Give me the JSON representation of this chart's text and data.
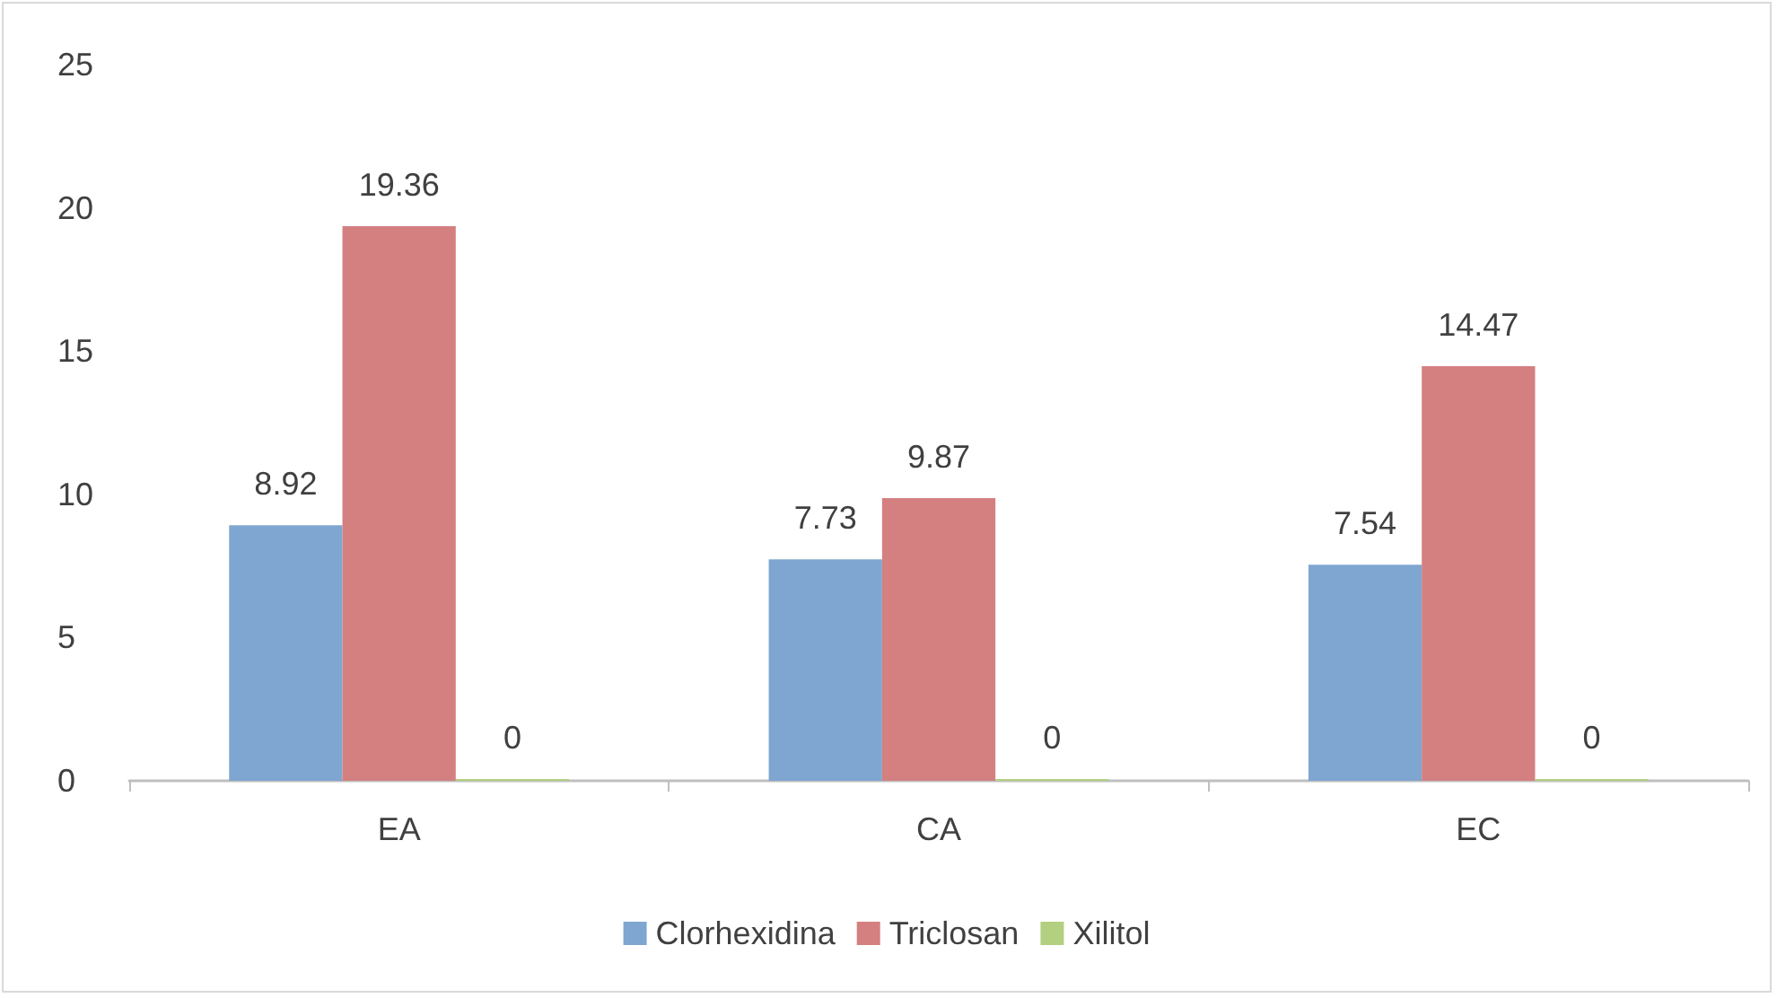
{
  "chart_data": {
    "type": "bar",
    "categories": [
      "EA",
      "CA",
      "EC"
    ],
    "series": [
      {
        "name": "Clorhexidina",
        "color": "#7fa6d0",
        "values": [
          8.92,
          7.73,
          7.54
        ]
      },
      {
        "name": "Triclosan",
        "color": "#d48080",
        "values": [
          19.36,
          9.87,
          14.47
        ]
      },
      {
        "name": "Xilitol",
        "color": "#b3cf80",
        "values": [
          0,
          0,
          0
        ]
      }
    ],
    "ylim": [
      0,
      25
    ],
    "yticks": [
      0,
      5,
      10,
      15,
      20,
      25
    ],
    "grid": false,
    "legend": "bottom",
    "data_labels": true
  }
}
